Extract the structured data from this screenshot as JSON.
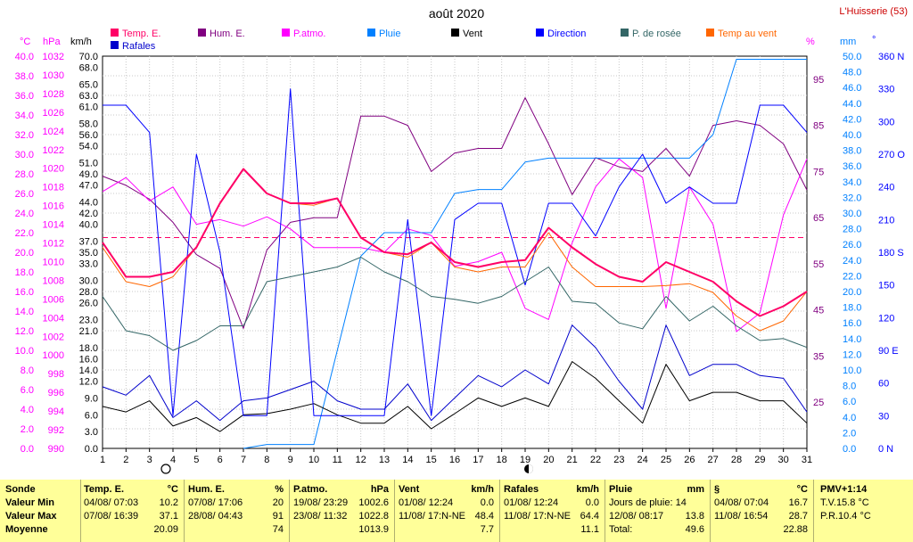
{
  "chart_data": {
    "type": "line",
    "title": "août 2020",
    "station": "L'Huisserie (53)",
    "x": [
      1,
      2,
      3,
      4,
      5,
      6,
      7,
      8,
      9,
      10,
      11,
      12,
      13,
      14,
      15,
      16,
      17,
      18,
      19,
      20,
      21,
      22,
      23,
      24,
      25,
      26,
      27,
      28,
      29,
      30,
      31
    ],
    "axes": {
      "temp": {
        "unit": "°C",
        "min": 0,
        "max": 40,
        "step": 2,
        "color": "#ff00ff"
      },
      "pressure": {
        "unit": "hPa",
        "min": 990,
        "max": 1032,
        "step": 2,
        "color": "#ff00ff"
      },
      "wind": {
        "unit": "km/h",
        "min": 0,
        "max": 70,
        "labels": [
          0,
          3,
          6,
          9,
          12,
          14,
          16,
          18,
          21,
          23,
          26,
          28,
          30,
          33,
          35,
          37,
          40,
          42,
          44,
          47,
          49,
          51,
          54,
          56,
          58,
          61,
          63,
          65,
          68,
          70
        ],
        "color": "#000000"
      },
      "humidity": {
        "unit": "%",
        "min": 15,
        "max": 100,
        "labels": [
          25,
          35,
          45,
          55,
          65,
          75,
          85,
          95
        ],
        "color": "#ff00ff"
      },
      "rain": {
        "unit": "mm",
        "min": 0,
        "max": 50,
        "step": 2,
        "color": "#0080ff"
      },
      "direction": {
        "unit": "°",
        "labels": [
          "0 N",
          "30",
          "60",
          "90 E",
          "120",
          "150",
          "180 S",
          "210",
          "240",
          "270 O",
          "300",
          "330",
          "360 N"
        ],
        "color": "#0000ff"
      }
    },
    "legend": [
      "Temp. E.",
      "Hum. E.",
      "P.atmo.",
      "Pluie",
      "Vent",
      "Direction",
      "P. de rosée",
      "Temp au vent",
      "Rafales"
    ],
    "reference_line": {
      "axis": "temp",
      "value": 21.5
    },
    "series": [
      {
        "name": "Temp. E.",
        "color": "#ff0066",
        "axis": "temp",
        "width": 2,
        "values": [
          21,
          17.5,
          17.5,
          18,
          20.5,
          25,
          28.5,
          26,
          25,
          25,
          25.5,
          21.5,
          20,
          19.8,
          21,
          19,
          18.5,
          19,
          19.2,
          22.5,
          20.5,
          18.8,
          17.5,
          17,
          19,
          18,
          17,
          15,
          13.5,
          14.5,
          16
        ]
      },
      {
        "name": "Hum. E.",
        "color": "#800080",
        "axis": "humidity",
        "width": 1,
        "values": [
          74,
          72,
          69,
          64,
          57,
          54,
          41,
          58,
          64,
          65,
          65,
          87,
          87,
          85,
          75,
          79,
          80,
          80,
          91,
          81,
          70,
          78,
          76,
          75,
          80,
          74,
          85,
          86,
          85,
          81,
          71
        ]
      },
      {
        "name": "P.atmo.",
        "color": "#ff00ff",
        "axis": "pressure",
        "width": 1,
        "values": [
          1017.5,
          1019,
          1016.5,
          1018,
          1014,
          1014.5,
          1013.8,
          1014.8,
          1013.5,
          1011.5,
          1011.5,
          1011.5,
          1011,
          1013.5,
          1012.8,
          1009.5,
          1010,
          1011,
          1005,
          1003.8,
          1012,
          1018,
          1021,
          1019,
          1005,
          1018,
          1014,
          1002.5,
          1004.5,
          1015,
          1021
        ]
      },
      {
        "name": "Pluie",
        "color": "#0080ff",
        "axis": "rain",
        "width": 1,
        "values": [
          0,
          0,
          0,
          0,
          0,
          0,
          0,
          0.5,
          0.5,
          0.5,
          12.5,
          24.5,
          27.5,
          27.5,
          27.5,
          32.5,
          33,
          33,
          36.5,
          37,
          37,
          37,
          37,
          37,
          37,
          37,
          40,
          49.6,
          49.6,
          49.6,
          49.6
        ],
        "start_day": 7
      },
      {
        "name": "Vent",
        "color": "#000000",
        "axis": "wind",
        "width": 1,
        "values": [
          7.5,
          6.5,
          8.5,
          4,
          5.5,
          3,
          6,
          6.2,
          7,
          8,
          6,
          4.5,
          4.5,
          7.5,
          3.5,
          6.2,
          9,
          7.5,
          9,
          7.5,
          15.5,
          12.5,
          8.5,
          4.5,
          15,
          8.5,
          10,
          10,
          8.5,
          8.5,
          4.5
        ]
      },
      {
        "name": "Direction",
        "color": "#0000ff",
        "axis": "direction",
        "width": 1,
        "values": [
          315,
          315,
          290,
          30,
          270,
          180,
          30,
          30,
          330,
          30,
          30,
          30,
          30,
          210,
          30,
          210,
          225,
          225,
          150,
          225,
          225,
          195,
          240,
          270,
          225,
          240,
          225,
          225,
          315,
          315,
          290
        ]
      },
      {
        "name": "P. de rosée",
        "color": "#336666",
        "axis": "temp",
        "width": 1,
        "values": [
          15.5,
          12,
          11.5,
          10,
          11,
          12.5,
          12.5,
          17,
          17.5,
          18,
          18.5,
          19.5,
          18,
          17,
          15.5,
          15.2,
          14.8,
          15.5,
          17,
          18.5,
          15,
          14.8,
          12.8,
          12.2,
          15.5,
          13,
          14.5,
          12.5,
          11,
          11.2,
          10.3
        ]
      },
      {
        "name": "Temp au vent",
        "color": "#ff6600",
        "axis": "temp",
        "width": 1,
        "values": [
          20.5,
          17,
          16.5,
          17.5,
          20.5,
          25,
          28.5,
          26,
          25,
          24.8,
          25.5,
          21.5,
          20,
          19.5,
          21,
          18.5,
          18,
          18.5,
          18.5,
          22,
          18.5,
          16.5,
          16.5,
          16.5,
          16.6,
          16.8,
          15.9,
          13.5,
          12,
          13,
          16
        ]
      },
      {
        "name": "Rafales",
        "color": "#0000cc",
        "axis": "wind",
        "width": 1,
        "values": [
          11,
          9.5,
          13,
          5.5,
          8.5,
          5,
          8.5,
          9,
          10.5,
          12,
          8.5,
          7,
          7,
          11.5,
          5,
          9,
          13,
          11,
          14,
          11.5,
          22,
          18,
          12,
          7,
          22,
          13,
          15,
          15,
          13,
          12.5,
          6.5
        ]
      }
    ]
  },
  "stats": {
    "sonde": {
      "title": "Sonde",
      "rows": [
        "Valeur Min",
        "Valeur Max",
        "Moyenne"
      ]
    },
    "temp": {
      "title": "Temp. E.",
      "unit": "°C",
      "min_date": "04/08/  07:03",
      "min_val": "10.2",
      "max_date": "07/08/  16:39",
      "max_val": "37.1",
      "avg": "20.09"
    },
    "hum": {
      "title": "Hum. E.",
      "unit": "%",
      "min_date": "07/08/  17:06",
      "min_val": "20",
      "max_date": "28/08/  04:43",
      "max_val": "91",
      "avg": "74"
    },
    "patmo": {
      "title": "P.atmo.",
      "unit": "hPa",
      "min_date": "19/08/  23:29",
      "min_val": "1002.6",
      "max_date": "23/08/  11:32",
      "max_val": "1022.8",
      "avg": "1013.9"
    },
    "vent": {
      "title": "Vent",
      "unit": "km/h",
      "min_date": "01/08/  12:24",
      "min_val": "0.0",
      "max_date": "11/08/  17:N-NE",
      "max_val": "48.4",
      "avg": "7.7"
    },
    "rafales": {
      "title": "Rafales",
      "unit": "km/h",
      "min_date": "01/08/  12:24",
      "min_val": "0.0",
      "max_date": "11/08/  17:N-NE",
      "max_val": "64.4",
      "avg": "11.1"
    },
    "pluie": {
      "title": "Pluie",
      "unit": "mm",
      "r1": "Jours de pluie: 14",
      "r2_date": "12/08/  08:17",
      "r2_val": "13.8",
      "r3_label": "Total:",
      "r3_val": "49.6"
    },
    "s": {
      "title": "§",
      "unit": "°C",
      "min_date": "04/08/  07:04",
      "min_val": "16.7",
      "max_date": "11/08/  16:54",
      "max_val": "28.7",
      "avg": "22.88"
    },
    "pmv": {
      "title": "PMV+1:14",
      "r1": "T.V.15.8 °C",
      "r2": "P.R.10.4 °C"
    }
  }
}
